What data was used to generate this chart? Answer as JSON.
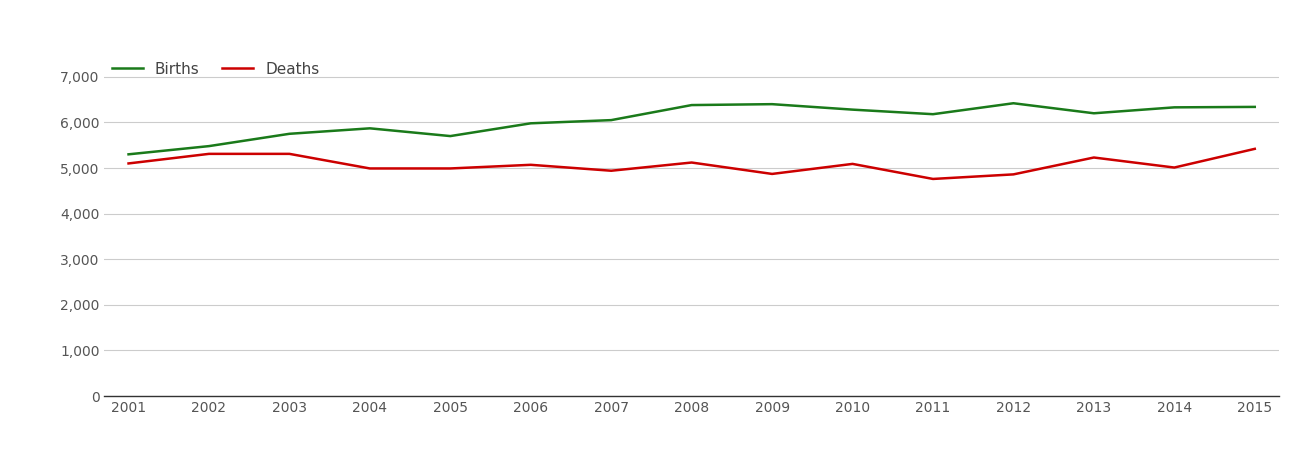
{
  "years": [
    2001,
    2002,
    2003,
    2004,
    2005,
    2006,
    2007,
    2008,
    2009,
    2010,
    2011,
    2012,
    2013,
    2014,
    2015
  ],
  "births": [
    5300,
    5480,
    5750,
    5870,
    5700,
    5980,
    6050,
    6380,
    6400,
    6280,
    6180,
    6420,
    6200,
    6330,
    6340
  ],
  "deaths": [
    5100,
    5310,
    5310,
    4990,
    4990,
    5070,
    4940,
    5120,
    4870,
    5090,
    4760,
    4860,
    5230,
    5010,
    5420
  ],
  "births_color": "#1a7a1a",
  "deaths_color": "#cc0000",
  "background_color": "#ffffff",
  "grid_color": "#cccccc",
  "ylim": [
    0,
    7500
  ],
  "yticks": [
    0,
    1000,
    2000,
    3000,
    4000,
    5000,
    6000,
    7000
  ],
  "legend_labels": [
    "Births",
    "Deaths"
  ],
  "line_width": 1.8,
  "tick_color": "#555555",
  "tick_fontsize": 10,
  "legend_fontsize": 11
}
